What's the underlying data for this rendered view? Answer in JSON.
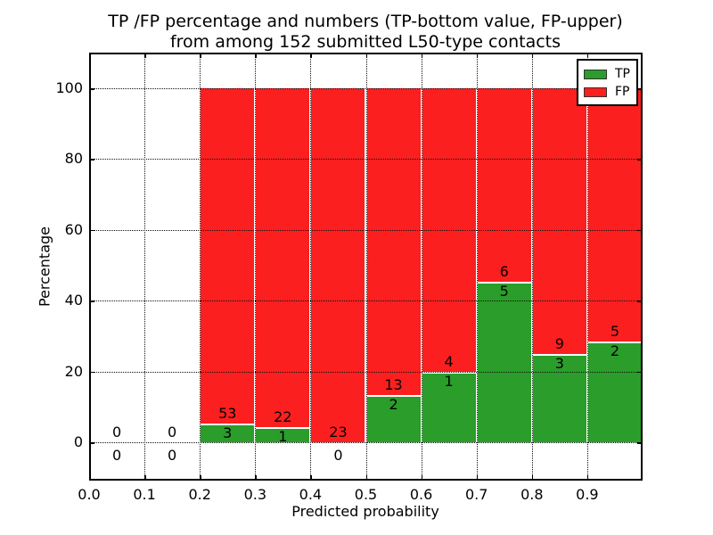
{
  "title": {
    "line1": "TP /FP percentage and numbers (TP-bottom value, FP-upper)",
    "line2": "from among 152 submitted L50-type contacts"
  },
  "chart_data": {
    "type": "bar",
    "subtype": "stacked-percentage-histogram",
    "title": "TP /FP percentage and numbers (TP-bottom value, FP-upper) from among 152 submitted L50-type contacts",
    "xlabel": "Predicted probability",
    "ylabel": "Percentage",
    "xlim": [
      0.0,
      1.0
    ],
    "ylim": [
      -11,
      110
    ],
    "grid": {
      "visible": true,
      "style": "dotted",
      "color": "#111111"
    },
    "xticks": [
      {
        "v": 0.0,
        "label": "0.0"
      },
      {
        "v": 0.1,
        "label": "0.1"
      },
      {
        "v": 0.2,
        "label": "0.2"
      },
      {
        "v": 0.3,
        "label": "0.3"
      },
      {
        "v": 0.4,
        "label": "0.4"
      },
      {
        "v": 0.5,
        "label": "0.5"
      },
      {
        "v": 0.6,
        "label": "0.6"
      },
      {
        "v": 0.7,
        "label": "0.7"
      },
      {
        "v": 0.8,
        "label": "0.8"
      },
      {
        "v": 0.9,
        "label": "0.9"
      }
    ],
    "yticks": [
      {
        "v": 0,
        "label": "0"
      },
      {
        "v": 20,
        "label": "20"
      },
      {
        "v": 40,
        "label": "40"
      },
      {
        "v": 60,
        "label": "60"
      },
      {
        "v": 80,
        "label": "80"
      },
      {
        "v": 100,
        "label": "100"
      }
    ],
    "legend": {
      "position": "upper-right",
      "entries": [
        {
          "label": "TP",
          "color": "#2a9d2a"
        },
        {
          "label": "FP",
          "color": "#fb1f1f"
        }
      ]
    },
    "bins": [
      {
        "x0": 0.0,
        "x1": 0.1,
        "tp": 0,
        "fp": 0,
        "tp_pct": 0,
        "has_bar": false
      },
      {
        "x0": 0.1,
        "x1": 0.2,
        "tp": 0,
        "fp": 0,
        "tp_pct": 0,
        "has_bar": false
      },
      {
        "x0": 0.2,
        "x1": 0.3,
        "tp": 3,
        "fp": 53,
        "tp_pct": 5.36,
        "has_bar": true
      },
      {
        "x0": 0.3,
        "x1": 0.4,
        "tp": 1,
        "fp": 22,
        "tp_pct": 4.35,
        "has_bar": true
      },
      {
        "x0": 0.4,
        "x1": 0.5,
        "tp": 0,
        "fp": 23,
        "tp_pct": 0,
        "has_bar": true
      },
      {
        "x0": 0.5,
        "x1": 0.6,
        "tp": 2,
        "fp": 13,
        "tp_pct": 13.33,
        "has_bar": true
      },
      {
        "x0": 0.6,
        "x1": 0.7,
        "tp": 1,
        "fp": 4,
        "tp_pct": 20.0,
        "has_bar": true
      },
      {
        "x0": 0.7,
        "x1": 0.8,
        "tp": 5,
        "fp": 6,
        "tp_pct": 45.45,
        "has_bar": true
      },
      {
        "x0": 0.8,
        "x1": 0.9,
        "tp": 3,
        "fp": 9,
        "tp_pct": 25.0,
        "has_bar": true
      },
      {
        "x0": 0.9,
        "x1": 1.0,
        "tp": 2,
        "fp": 5,
        "tp_pct": 28.57,
        "has_bar": true
      }
    ],
    "colors": {
      "tp": "#2a9d2a",
      "fp": "#fb1f1f",
      "bar_edge": "#ffffff",
      "background": "#ffffff"
    }
  }
}
